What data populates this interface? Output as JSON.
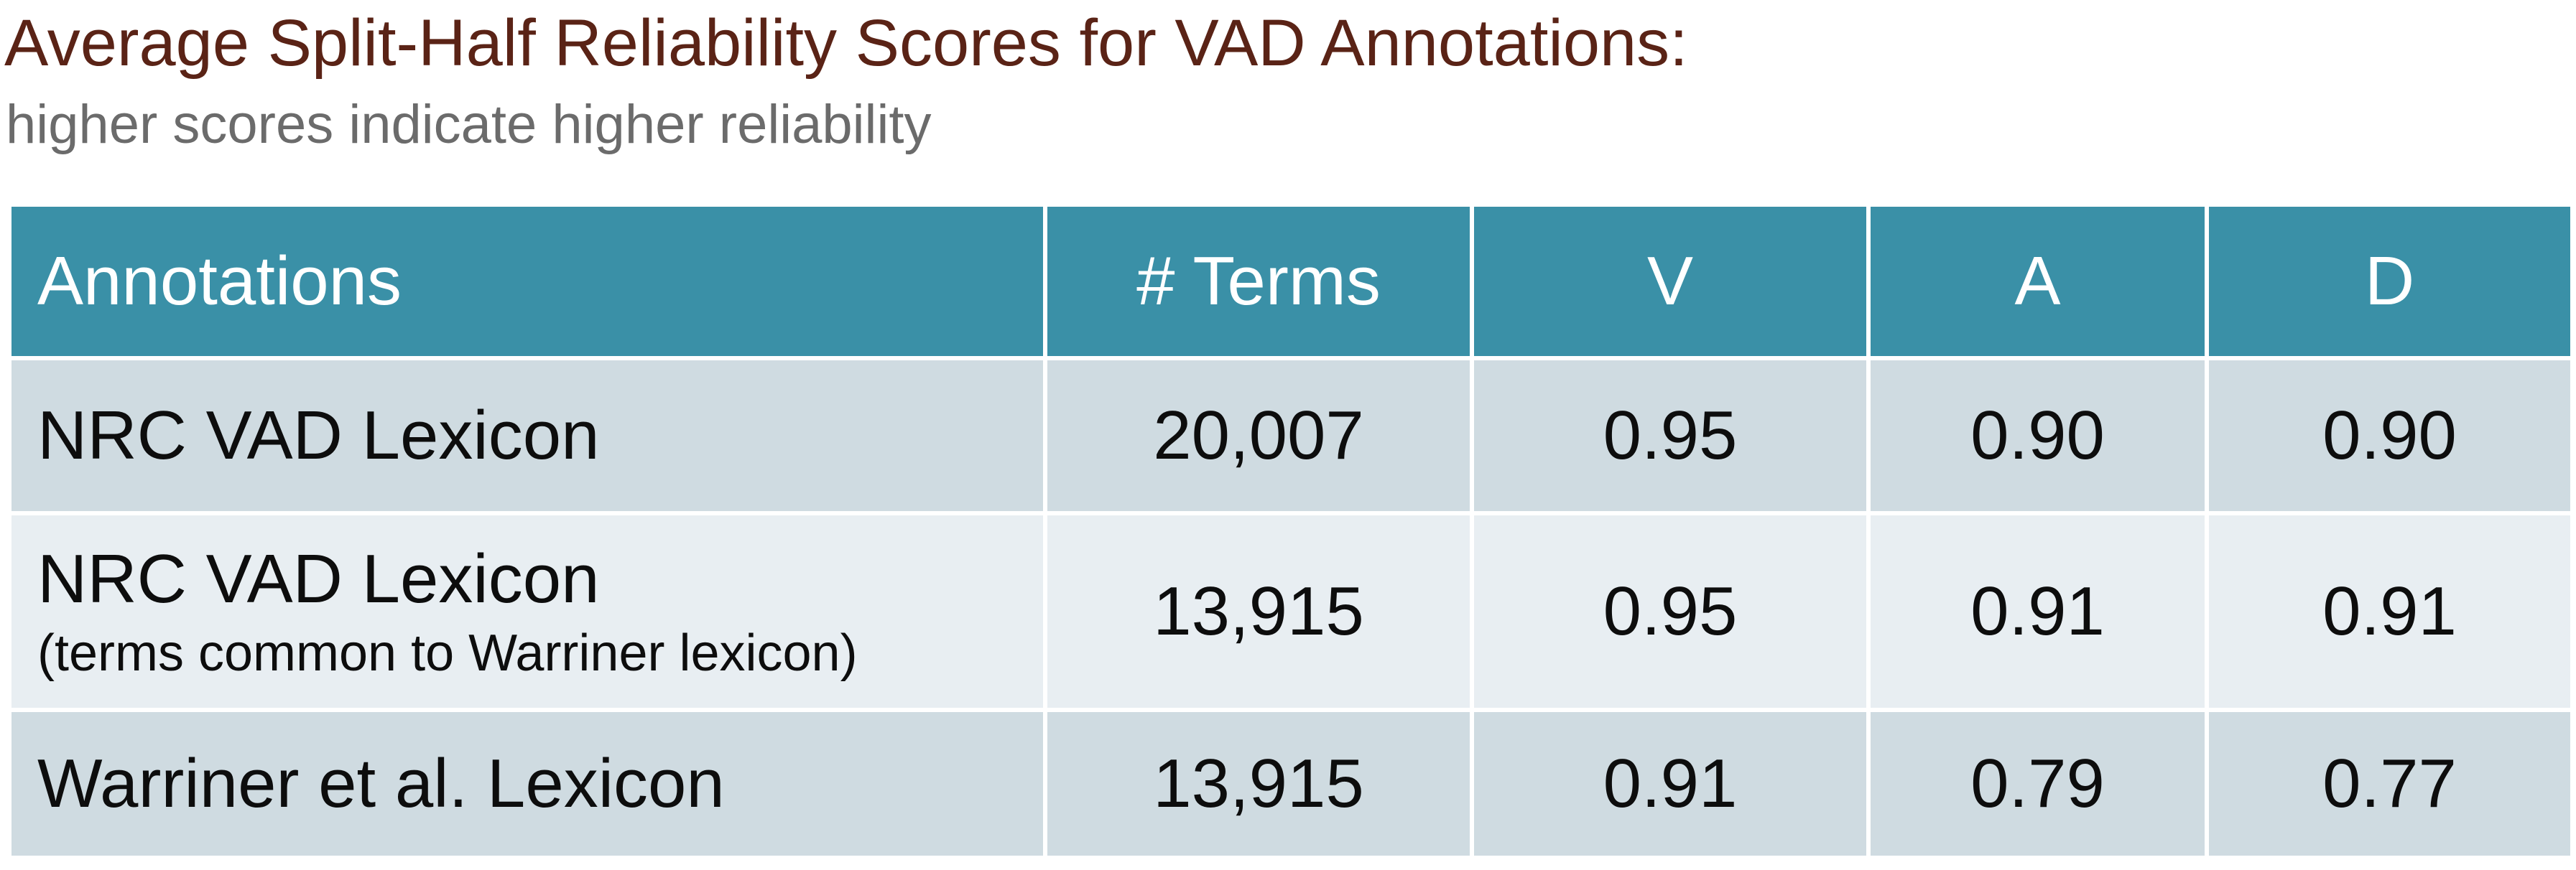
{
  "title": "Average Split-Half Reliability Scores for VAD Annotations:",
  "subtitle": "higher scores indicate higher reliability",
  "table": {
    "headers": [
      "Annotations",
      "# Terms",
      "V",
      "A",
      "D"
    ],
    "rows": [
      {
        "label": "NRC VAD Lexicon",
        "note": "",
        "terms": "20,007",
        "v": "0.95",
        "a": "0.90",
        "d": "0.90"
      },
      {
        "label": "NRC VAD Lexicon",
        "note": "(terms common to Warriner lexicon)",
        "terms": "13,915",
        "v": "0.95",
        "a": "0.91",
        "d": "0.91"
      },
      {
        "label": "Warriner et al. Lexicon",
        "note": "",
        "terms": "13,915",
        "v": "0.91",
        "a": "0.79",
        "d": "0.77"
      }
    ]
  },
  "colors": {
    "title": "#5a2316",
    "subtitle": "#6b6b6b",
    "header_bg": "#3a90a7",
    "row_dark": "#cfdbe1",
    "row_light": "#e8eef2"
  }
}
